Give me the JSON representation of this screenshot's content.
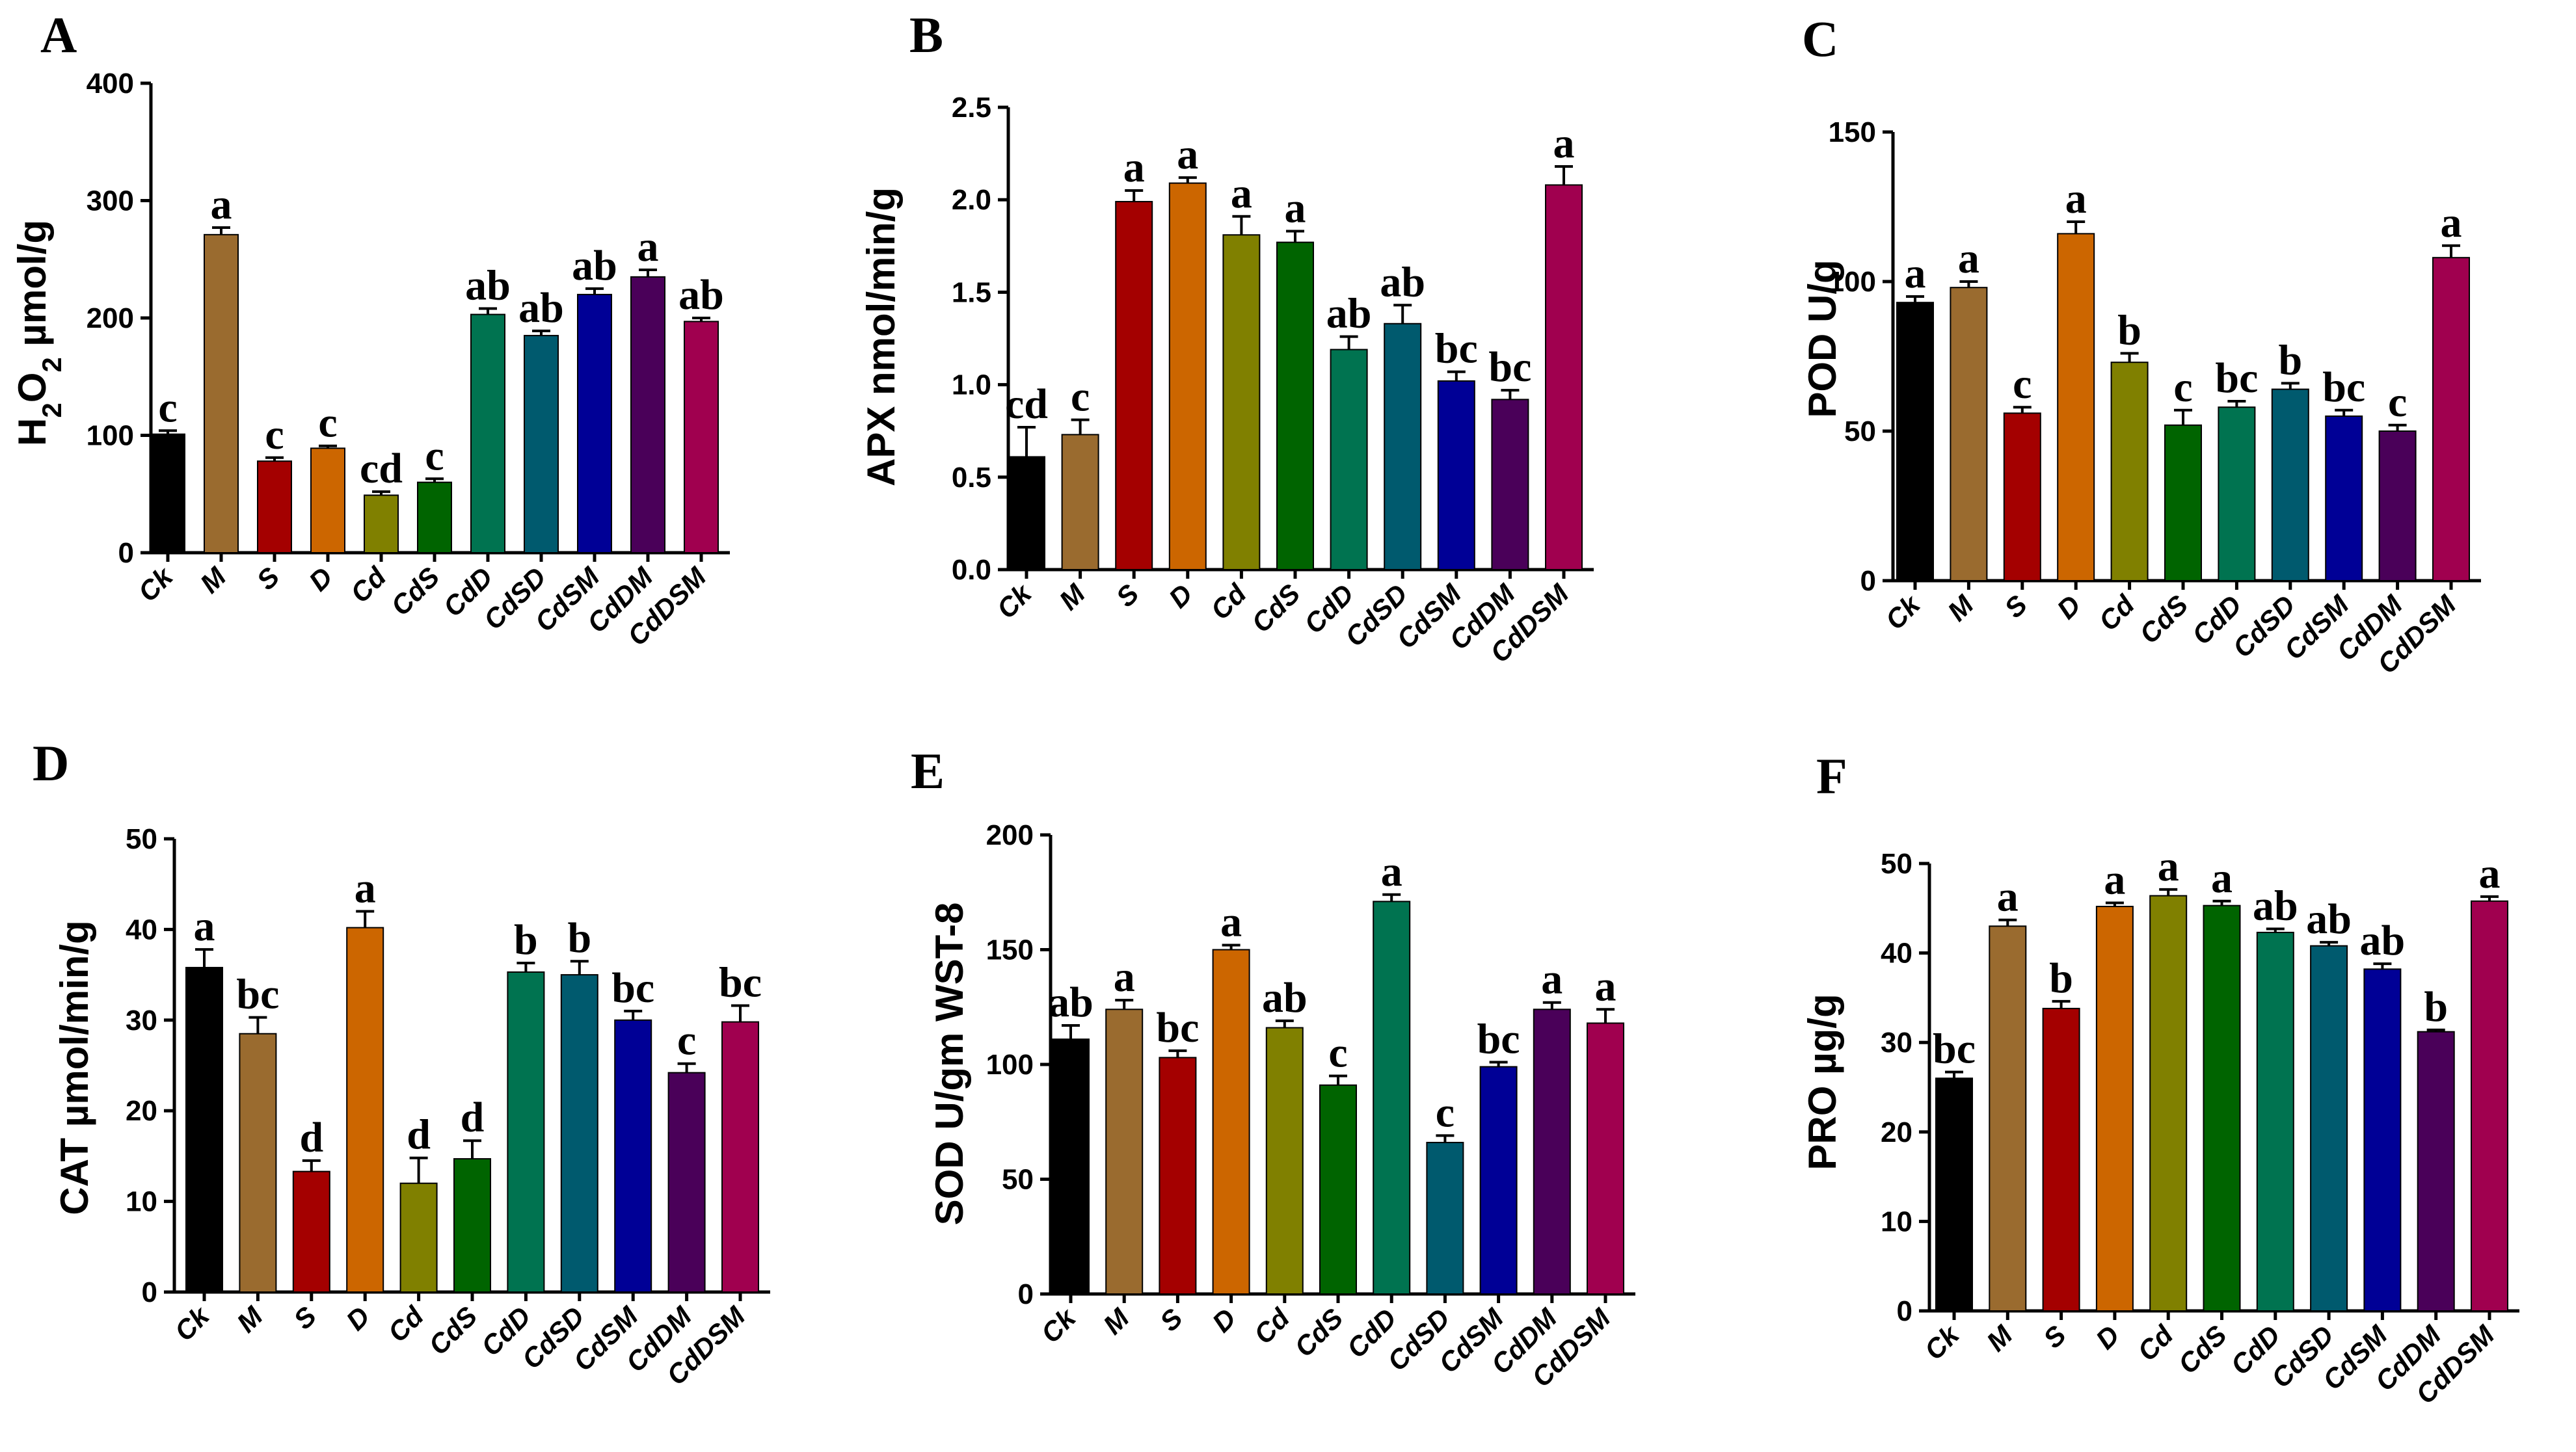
{
  "chart_data": [
    {
      "panel": "A",
      "type": "bar",
      "ylabel_main": "H",
      "ylabel_sub1": "2",
      "ylabel_mid": "O",
      "ylabel_sub2": "2",
      "ylabel_unit": " µmol/g",
      "ylim": [
        0,
        400
      ],
      "yticks": [
        "0",
        "100",
        "200",
        "300",
        "400"
      ],
      "categories": [
        "Ck",
        "M",
        "S",
        "D",
        "Cd",
        "CdS",
        "CdD",
        "CdSD",
        "CdSM",
        "CdDM",
        "CdDSM"
      ],
      "values": [
        101,
        271,
        78,
        89,
        49,
        60,
        203,
        185,
        220,
        235,
        197
      ],
      "errors": [
        3,
        6,
        3,
        2,
        3,
        3,
        5,
        4,
        5,
        6,
        3
      ],
      "letters": [
        "c",
        "a",
        "c",
        "c",
        "cd",
        "c",
        "ab",
        "ab",
        "ab",
        "a",
        "ab"
      ]
    },
    {
      "panel": "B",
      "type": "bar",
      "ylabel": "APX nmol/min/g",
      "ylim": [
        0,
        2.5
      ],
      "yticks": [
        "0.0",
        "0.5",
        "1.0",
        "1.5",
        "2.0",
        "2.5"
      ],
      "categories": [
        "Ck",
        "M",
        "S",
        "D",
        "Cd",
        "CdS",
        "CdD",
        "CdSD",
        "CdSM",
        "CdDM",
        "CdDSM"
      ],
      "values": [
        0.61,
        0.73,
        1.99,
        2.09,
        1.81,
        1.77,
        1.19,
        1.33,
        1.02,
        0.92,
        2.08
      ],
      "errors": [
        0.16,
        0.08,
        0.06,
        0.03,
        0.1,
        0.06,
        0.07,
        0.1,
        0.05,
        0.05,
        0.1
      ],
      "letters": [
        "cd",
        "c",
        "a",
        "a",
        "a",
        "a",
        "ab",
        "ab",
        "bc",
        "bc",
        "a"
      ]
    },
    {
      "panel": "C",
      "type": "bar",
      "ylabel": "POD U/g",
      "ylim": [
        0,
        150
      ],
      "yticks": [
        "0",
        "50",
        "100",
        "150"
      ],
      "categories": [
        "Ck",
        "M",
        "S",
        "D",
        "Cd",
        "CdS",
        "CdD",
        "CdSD",
        "CdSM",
        "CdDM",
        "CdDSM"
      ],
      "values": [
        93,
        98,
        56,
        116,
        73,
        52,
        58,
        64,
        55,
        50,
        108
      ],
      "errors": [
        2,
        2,
        2,
        4,
        3,
        5,
        2,
        2,
        2,
        2,
        4
      ],
      "letters": [
        "a",
        "a",
        "c",
        "a",
        "b",
        "c",
        "bc",
        "b",
        "bc",
        "c",
        "a"
      ]
    },
    {
      "panel": "D",
      "type": "bar",
      "ylabel": "CAT µmol/min/g",
      "ylim": [
        0,
        50
      ],
      "yticks": [
        "0",
        "10",
        "20",
        "30",
        "40",
        "50"
      ],
      "categories": [
        "Ck",
        "M",
        "S",
        "D",
        "Cd",
        "CdS",
        "CdD",
        "CdSD",
        "CdSM",
        "CdDM",
        "CdDSM"
      ],
      "values": [
        35.8,
        28.5,
        13.3,
        40.2,
        12.0,
        14.7,
        35.3,
        35.0,
        30.0,
        24.2,
        29.8
      ],
      "errors": [
        2.0,
        1.8,
        1.2,
        1.8,
        2.8,
        2.0,
        1.0,
        1.5,
        1.0,
        1.0,
        1.8
      ],
      "letters": [
        "a",
        "bc",
        "d",
        "a",
        "d",
        "d",
        "b",
        "b",
        "bc",
        "c",
        "bc"
      ]
    },
    {
      "panel": "E",
      "type": "bar",
      "ylabel": "SOD U/gm WST-8",
      "ylim": [
        0,
        200
      ],
      "yticks": [
        "0",
        "50",
        "100",
        "150",
        "200"
      ],
      "categories": [
        "Ck",
        "M",
        "S",
        "D",
        "Cd",
        "CdS",
        "CdD",
        "CdSD",
        "CdSM",
        "CdDM",
        "CdDSM"
      ],
      "values": [
        111,
        124,
        103,
        150,
        116,
        91,
        171,
        66,
        99,
        124,
        118
      ],
      "errors": [
        6,
        4,
        3,
        2,
        3,
        4,
        3,
        3,
        2,
        3,
        6
      ],
      "letters": [
        "ab",
        "a",
        "bc",
        "a",
        "ab",
        "c",
        "a",
        "c",
        "bc",
        "a",
        "a"
      ]
    },
    {
      "panel": "F",
      "type": "bar",
      "ylabel": "PRO µg/g",
      "ylim": [
        0,
        50
      ],
      "yticks": [
        "0",
        "10",
        "20",
        "30",
        "40",
        "50"
      ],
      "categories": [
        "Ck",
        "M",
        "S",
        "D",
        "Cd",
        "CdS",
        "CdD",
        "CdSD",
        "CdSM",
        "CdDM",
        "CdDSM"
      ],
      "values": [
        26.0,
        43.0,
        33.8,
        45.2,
        46.4,
        45.3,
        42.3,
        40.8,
        38.2,
        31.2,
        45.8
      ],
      "errors": [
        0.7,
        0.7,
        0.8,
        0.4,
        0.7,
        0.5,
        0.4,
        0.4,
        0.6,
        0.2,
        0.5
      ],
      "letters": [
        "bc",
        "a",
        "b",
        "a",
        "a",
        "a",
        "ab",
        "ab",
        "ab",
        "b",
        "a"
      ]
    }
  ],
  "colors": [
    "#000000",
    "#9a6b2f",
    "#a40000",
    "#cc6600",
    "#808000",
    "#006400",
    "#007350",
    "#005a6e",
    "#000096",
    "#4a0059",
    "#a0004f"
  ]
}
